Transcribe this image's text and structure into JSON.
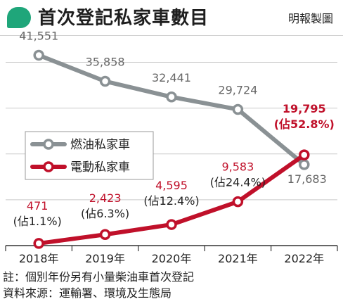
{
  "header": {
    "title": "首次登記私家車數目",
    "source_tag": "明報製圖",
    "badge_color": "#1fa67a"
  },
  "chart_data": {
    "type": "line",
    "categories": [
      "2018年",
      "2019年",
      "2020年",
      "2021年",
      "2022年"
    ],
    "ylim": [
      0,
      45000
    ],
    "grid": true,
    "legend_position": "center-left",
    "series": [
      {
        "name": "燃油私家車",
        "color": "#8a9194",
        "values": [
          41551,
          35858,
          32441,
          29724,
          17683
        ],
        "labels": [
          "41,551",
          "35,858",
          "32,441",
          "29,724",
          "17,683"
        ],
        "sublabels": [
          "",
          "",
          "",
          "",
          ""
        ]
      },
      {
        "name": "電動私家車",
        "color": "#c0102a",
        "values": [
          471,
          2423,
          4595,
          9583,
          19795
        ],
        "labels": [
          "471",
          "2,423",
          "4,595",
          "9,583",
          "19,795"
        ],
        "sublabels": [
          "(佔1.1%)",
          "(佔6.3%)",
          "(佔12.4%)",
          "(佔24.4%)",
          "(佔52.8%)"
        ]
      }
    ]
  },
  "notes": {
    "note": "註：個別年份另有小量柴油車首次登記",
    "source": "資料來源：運輸署、環境及生態局"
  }
}
